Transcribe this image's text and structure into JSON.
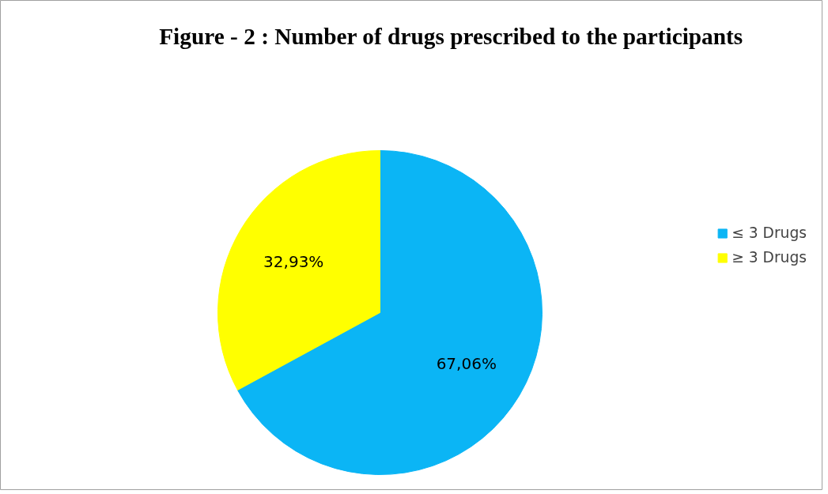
{
  "chart_data": {
    "type": "pie",
    "title": "Figure - 2 : Number of drugs prescribed to the participants",
    "categories": [
      "≤ 3 Drugs",
      "≥ 3 Drugs"
    ],
    "values": [
      67.06,
      32.93
    ],
    "colors": [
      "#0bb5f5",
      "#ffff00"
    ],
    "value_labels": [
      "67,06%",
      "32,93%"
    ],
    "legend": "right"
  }
}
